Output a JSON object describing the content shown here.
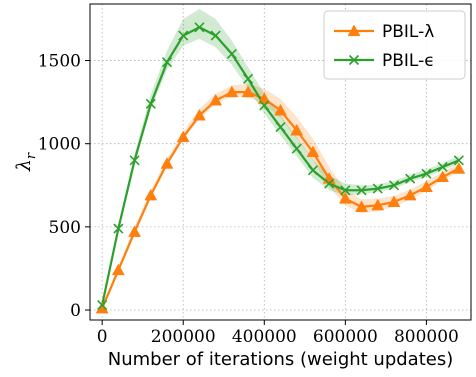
{
  "chart_data": {
    "type": "line",
    "xlabel": "Number of iterations (weight updates)",
    "ylabel": "λr",
    "xlim": [
      -30000,
      910000
    ],
    "ylim": [
      -60,
      1840
    ],
    "xticks": [
      0,
      200000,
      400000,
      600000,
      800000
    ],
    "xtick_labels": [
      "0",
      "200000",
      "400000",
      "600000",
      "800000"
    ],
    "yticks": [
      0,
      500,
      1000,
      1500
    ],
    "ytick_labels": [
      "0",
      "500",
      "1000",
      "1500"
    ],
    "grid": true,
    "legend_position": "top-right",
    "series": [
      {
        "name": "PBIL-λ",
        "color": "#ff7f0e",
        "marker": "triangle",
        "x": [
          0,
          40000,
          80000,
          120000,
          160000,
          200000,
          240000,
          280000,
          320000,
          360000,
          400000,
          440000,
          480000,
          520000,
          560000,
          600000,
          640000,
          680000,
          720000,
          760000,
          800000,
          840000,
          880000
        ],
        "y": [
          10,
          240,
          470,
          690,
          880,
          1040,
          1170,
          1260,
          1310,
          1310,
          1270,
          1200,
          1080,
          950,
          790,
          670,
          620,
          630,
          650,
          690,
          740,
          800,
          850
        ],
        "band": [
          [
            0,
            20
          ],
          [
            10,
            20
          ],
          [
            15,
            30
          ],
          [
            15,
            30
          ],
          [
            15,
            30
          ],
          [
            15,
            30
          ],
          [
            20,
            40
          ],
          [
            20,
            40
          ],
          [
            25,
            40
          ],
          [
            30,
            50
          ],
          [
            35,
            60
          ],
          [
            45,
            70
          ],
          [
            50,
            80
          ],
          [
            50,
            80
          ],
          [
            50,
            70
          ],
          [
            40,
            50
          ],
          [
            40,
            45
          ],
          [
            35,
            40
          ],
          [
            30,
            35
          ],
          [
            25,
            35
          ],
          [
            25,
            35
          ],
          [
            20,
            30
          ],
          [
            20,
            30
          ]
        ]
      },
      {
        "name": "PBIL-ϵ",
        "color": "#2ca02c",
        "marker": "x",
        "x": [
          0,
          40000,
          80000,
          120000,
          160000,
          200000,
          240000,
          280000,
          320000,
          360000,
          400000,
          440000,
          480000,
          520000,
          560000,
          600000,
          640000,
          680000,
          720000,
          760000,
          800000,
          840000,
          880000
        ],
        "y": [
          30,
          490,
          900,
          1240,
          1490,
          1650,
          1700,
          1650,
          1540,
          1390,
          1230,
          1100,
          970,
          840,
          760,
          720,
          720,
          730,
          750,
          790,
          820,
          860,
          900
        ],
        "band": [
          [
            0,
            20
          ],
          [
            20,
            30
          ],
          [
            25,
            40
          ],
          [
            35,
            55
          ],
          [
            45,
            70
          ],
          [
            60,
            100
          ],
          [
            70,
            110
          ],
          [
            70,
            100
          ],
          [
            65,
            80
          ],
          [
            55,
            70
          ],
          [
            50,
            70
          ],
          [
            50,
            70
          ],
          [
            45,
            70
          ],
          [
            45,
            65
          ],
          [
            40,
            50
          ],
          [
            30,
            40
          ],
          [
            25,
            30
          ],
          [
            20,
            25
          ],
          [
            20,
            25
          ],
          [
            20,
            25
          ],
          [
            20,
            25
          ],
          [
            20,
            25
          ],
          [
            20,
            25
          ]
        ]
      }
    ]
  }
}
